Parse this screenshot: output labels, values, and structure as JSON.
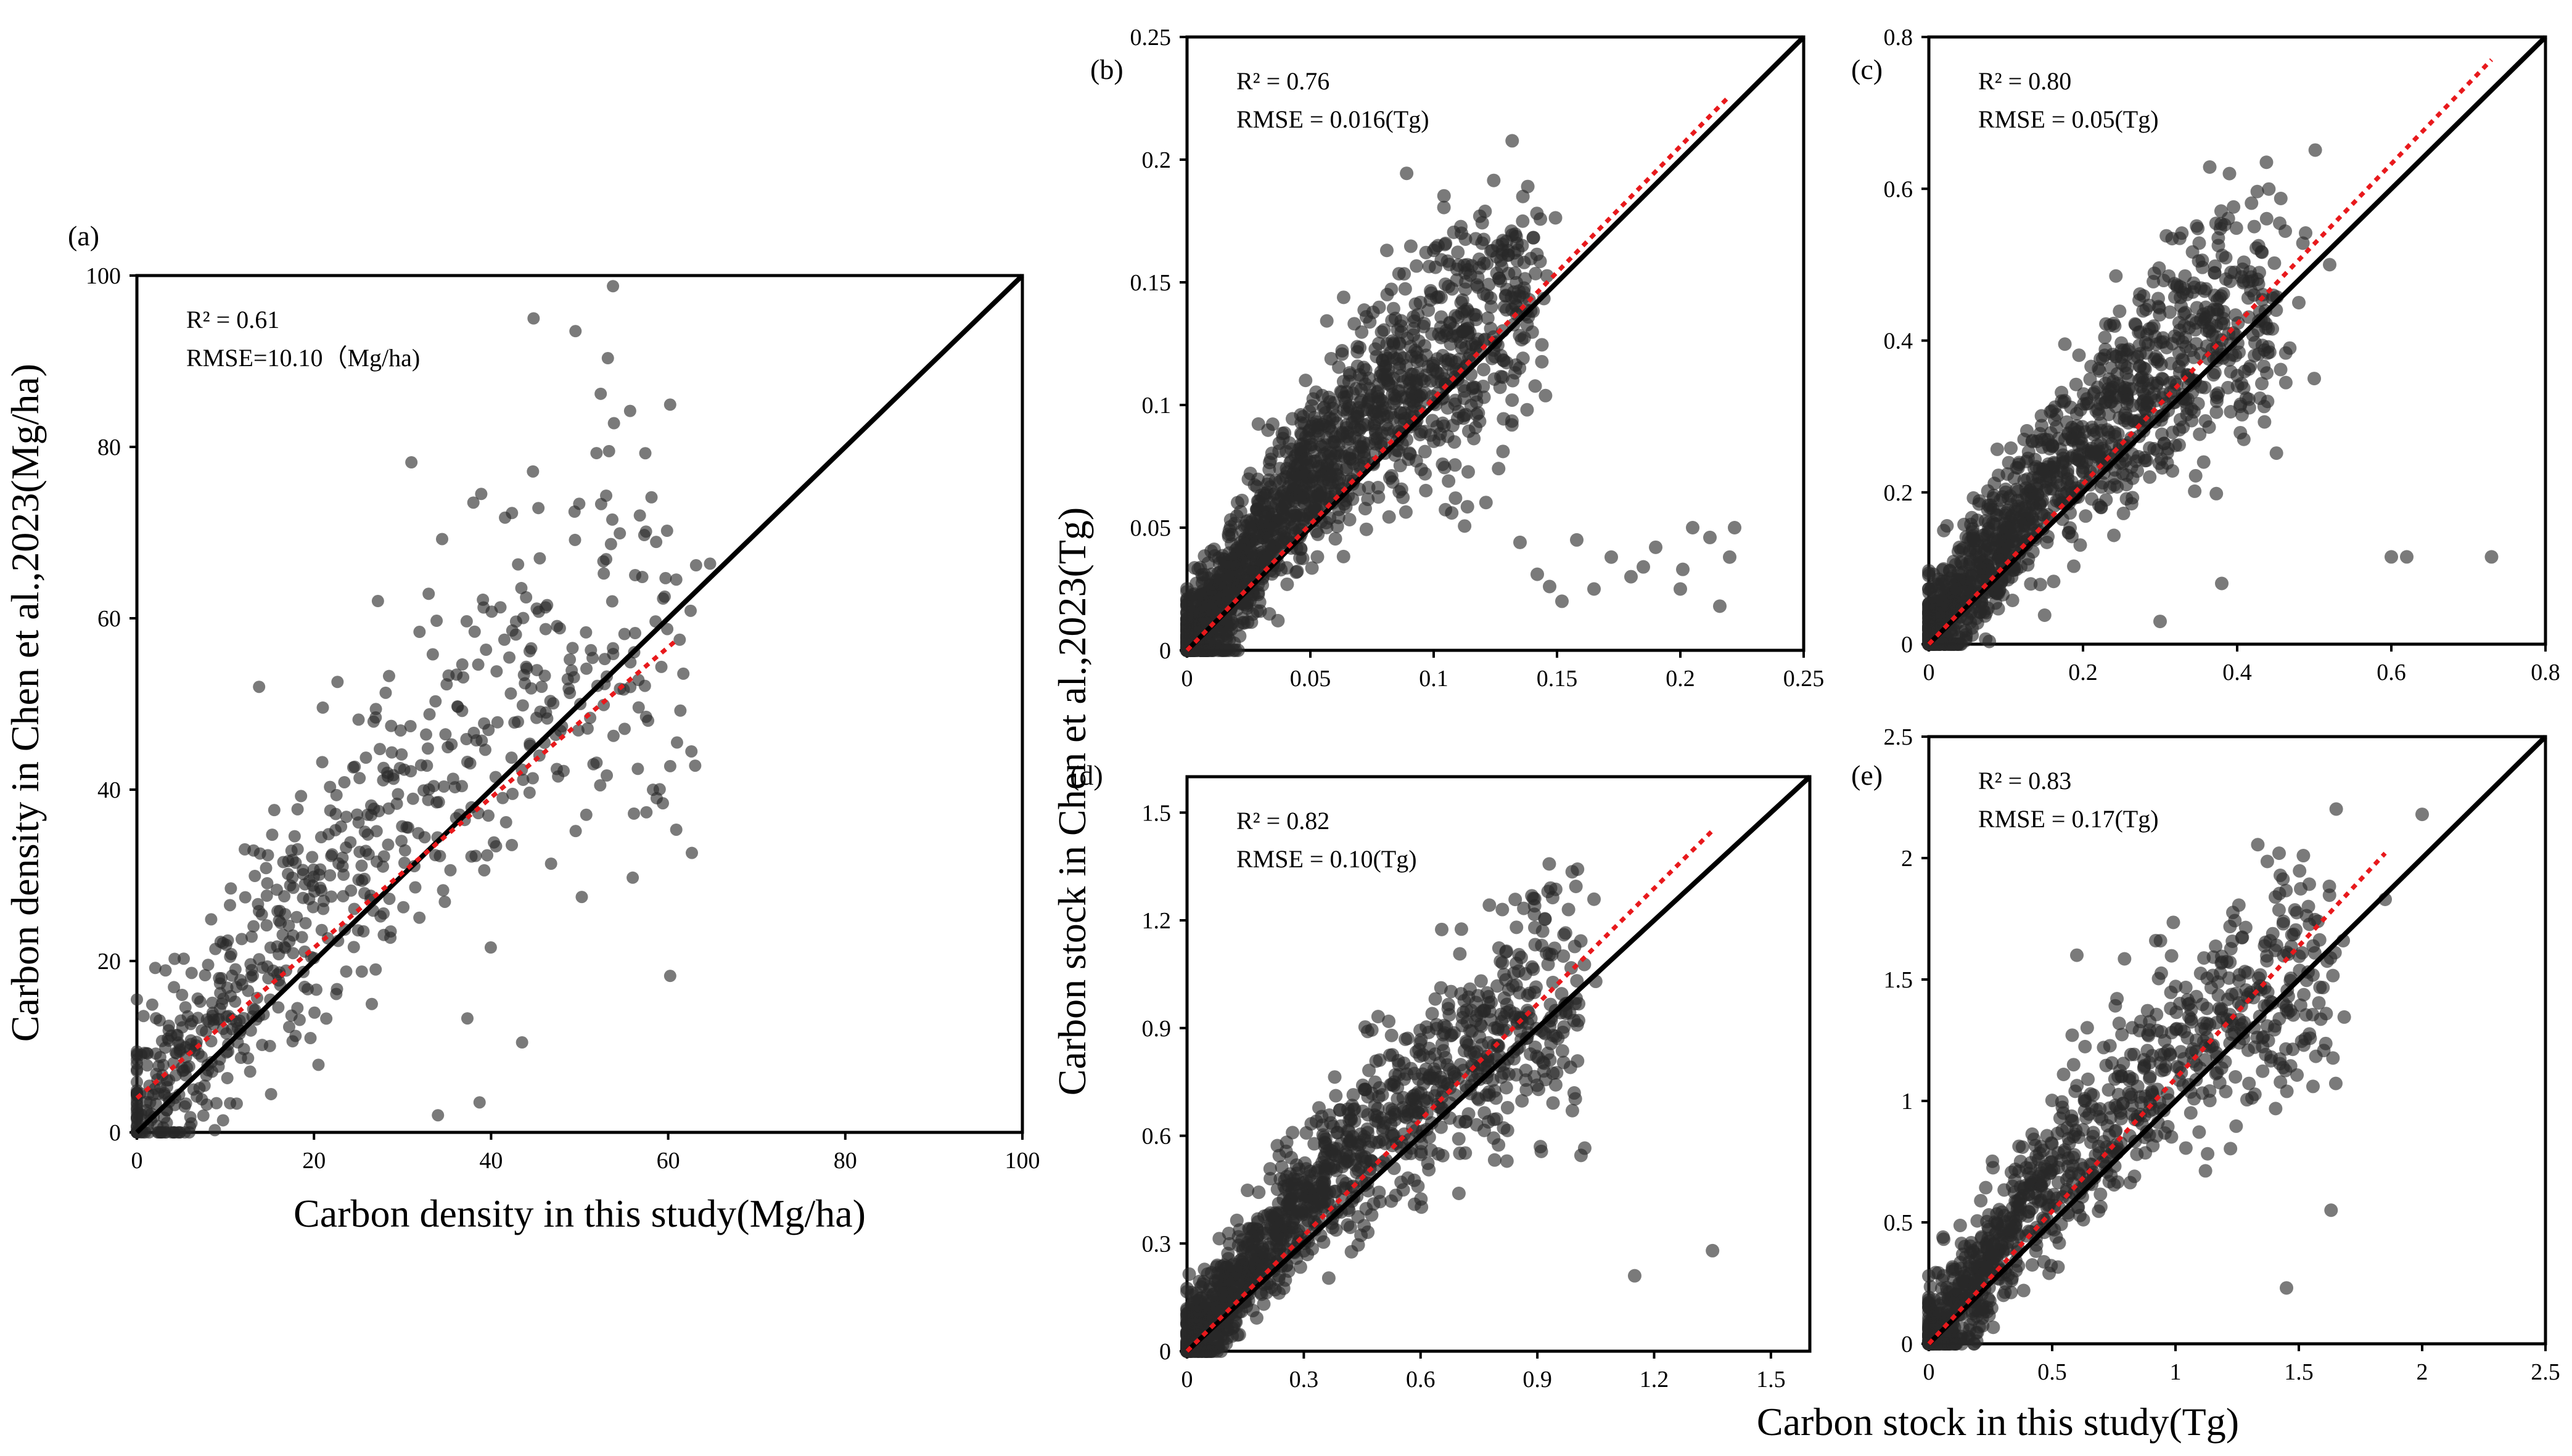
{
  "chart_data": [
    {
      "id": "a",
      "type": "scatter",
      "label": "(a)",
      "stats": [
        "R² = 0.61",
        "RMSE=10.10（Mg/ha)"
      ],
      "xlabel": "Carbon density in this study(Mg/ha)",
      "ylabel": "Carbon density in Chen et al.,2023(Mg/ha)",
      "xlim": [
        0,
        100
      ],
      "ylim": [
        0,
        100
      ],
      "xticks": [
        0,
        20,
        40,
        60,
        80,
        100
      ],
      "xtick_labels": [
        "0",
        "20",
        "40",
        "60",
        "80",
        "100"
      ],
      "yticks": [
        0,
        20,
        40,
        60,
        80,
        100
      ],
      "ytick_labels": [
        "0",
        "20",
        "40",
        "60",
        "80",
        "100"
      ],
      "one_to_one": [
        0,
        100
      ],
      "fit_line": {
        "x": [
          0,
          61
        ],
        "y": [
          4,
          57.5
        ]
      },
      "cluster": {
        "n": 700,
        "max": 60,
        "spread": 11,
        "pull": 0.55,
        "seed": 11
      },
      "points": [
        [
          44.8,
          95.0
        ],
        [
          55.7,
          84.2
        ],
        [
          31.0,
          78.2
        ],
        [
          38.0,
          73.5
        ],
        [
          56.8,
          72.0
        ],
        [
          45.5,
          67.0
        ],
        [
          41.5,
          57.5
        ],
        [
          61.3,
          57.5
        ],
        [
          13.8,
          52.0
        ],
        [
          43.5,
          10.5
        ],
        [
          38.7,
          3.5
        ],
        [
          34.0,
          2.0
        ],
        [
          58.7,
          39.0
        ],
        [
          57.5,
          48.5
        ]
      ]
    },
    {
      "id": "b",
      "type": "scatter",
      "label": "(b)",
      "stats": [
        "R² = 0.76",
        "RMSE = 0.016(Tg)"
      ],
      "xlabel": "",
      "ylabel": "",
      "xlim": [
        0,
        0.25
      ],
      "ylim": [
        0,
        0.25
      ],
      "xticks": [
        0,
        0.05,
        0.1,
        0.15,
        0.2,
        0.25
      ],
      "xtick_labels": [
        "0",
        "0.05",
        "0.1",
        "0.15",
        "0.2",
        "0.25"
      ],
      "yticks": [
        0,
        0.05,
        0.1,
        0.15,
        0.2,
        0.25
      ],
      "ytick_labels": [
        "0",
        "0.05",
        "0.1",
        "0.15",
        "0.2",
        "0.25"
      ],
      "one_to_one": [
        0,
        0.25
      ],
      "fit_line": {
        "x": [
          0,
          0.22
        ],
        "y": [
          0,
          0.226
        ]
      },
      "cluster": {
        "n": 1600,
        "max": 0.14,
        "spread": 0.022,
        "pull": 0.65,
        "seed": 23
      },
      "points": [
        [
          0.135,
          0.044
        ],
        [
          0.142,
          0.031
        ],
        [
          0.147,
          0.026
        ],
        [
          0.152,
          0.02
        ],
        [
          0.158,
          0.045
        ],
        [
          0.165,
          0.025
        ],
        [
          0.172,
          0.038
        ],
        [
          0.18,
          0.03
        ],
        [
          0.185,
          0.034
        ],
        [
          0.19,
          0.042
        ],
        [
          0.2,
          0.025
        ],
        [
          0.201,
          0.033
        ],
        [
          0.205,
          0.05
        ],
        [
          0.212,
          0.046
        ],
        [
          0.216,
          0.018
        ],
        [
          0.22,
          0.038
        ],
        [
          0.222,
          0.05
        ],
        [
          0.1,
          0.163
        ],
        [
          0.081,
          0.163
        ],
        [
          0.11,
          0.157
        ]
      ]
    },
    {
      "id": "c",
      "type": "scatter",
      "label": "(c)",
      "stats": [
        "R² = 0.80",
        "RMSE = 0.05(Tg)"
      ],
      "xlabel": "",
      "ylabel": "",
      "xlim": [
        0,
        0.8
      ],
      "ylim": [
        0,
        0.8
      ],
      "xticks": [
        0,
        0.2,
        0.4,
        0.6,
        0.8
      ],
      "xtick_labels": [
        "0",
        "0.2",
        "0.4",
        "0.6",
        "0.8"
      ],
      "yticks": [
        0,
        0.2,
        0.4,
        0.6,
        0.8
      ],
      "ytick_labels": [
        "0",
        "0.2",
        "0.4",
        "0.6",
        "0.8"
      ],
      "one_to_one": [
        0,
        0.8
      ],
      "fit_line": {
        "x": [
          0,
          0.73
        ],
        "y": [
          0,
          0.77
        ]
      },
      "cluster": {
        "n": 1300,
        "max": 0.45,
        "spread": 0.07,
        "pull": 0.6,
        "seed": 37
      },
      "points": [
        [
          0.6,
          0.115
        ],
        [
          0.62,
          0.115
        ],
        [
          0.73,
          0.115
        ],
        [
          0.39,
          0.62
        ],
        [
          0.5,
          0.35
        ],
        [
          0.52,
          0.5
        ],
        [
          0.48,
          0.45
        ],
        [
          0.3,
          0.03
        ],
        [
          0.38,
          0.08
        ]
      ]
    },
    {
      "id": "d",
      "type": "scatter",
      "label": "(d)",
      "stats": [
        "R² = 0.82",
        "RMSE = 0.10(Tg)"
      ],
      "xlabel": "",
      "ylabel": "",
      "xlim": [
        0,
        1.6
      ],
      "ylim": [
        0,
        1.6
      ],
      "xticks": [
        0,
        0.3,
        0.6,
        0.9,
        1.2,
        1.5
      ],
      "xtick_labels": [
        "0",
        "0.3",
        "0.6",
        "0.9",
        "1.2",
        "1.5"
      ],
      "yticks": [
        0,
        0.3,
        0.6,
        0.9,
        1.2,
        1.5
      ],
      "ytick_labels": [
        "0",
        "0.3",
        "0.6",
        "0.9",
        "1.2",
        "1.5"
      ],
      "one_to_one": [
        0,
        1.6
      ],
      "fit_line": {
        "x": [
          0,
          1.35
        ],
        "y": [
          0,
          1.45
        ]
      },
      "cluster": {
        "n": 1300,
        "max": 1.0,
        "spread": 0.13,
        "pull": 0.55,
        "seed": 53
      },
      "points": [
        [
          1.15,
          0.21
        ],
        [
          1.35,
          0.28
        ],
        [
          0.81,
          1.23
        ],
        [
          0.98,
          1.23
        ],
        [
          1.05,
          1.03
        ],
        [
          0.99,
          0.67
        ]
      ]
    },
    {
      "id": "e",
      "type": "scatter",
      "label": "(e)",
      "stats": [
        "R² = 0.83",
        "RMSE = 0.17(Tg)"
      ],
      "xlabel": "",
      "ylabel": "",
      "xlim": [
        0,
        2.5
      ],
      "ylim": [
        0,
        2.5
      ],
      "xticks": [
        0,
        0.5,
        1,
        1.5,
        2,
        2.5
      ],
      "xtick_labels": [
        "0",
        "0.5",
        "1",
        "1.5",
        "2",
        "2.5"
      ],
      "yticks": [
        0,
        0.5,
        1,
        1.5,
        2,
        2.5
      ],
      "ytick_labels": [
        "0",
        "0.5",
        "1",
        "1.5",
        "2",
        "2.5"
      ],
      "one_to_one": [
        0,
        2.5
      ],
      "fit_line": {
        "x": [
          0,
          1.85
        ],
        "y": [
          0,
          2.02
        ]
      },
      "cluster": {
        "n": 1000,
        "max": 1.6,
        "spread": 0.22,
        "pull": 0.5,
        "seed": 71
      },
      "points": [
        [
          2.0,
          2.18
        ],
        [
          1.42,
          2.02
        ],
        [
          1.45,
          0.23
        ],
        [
          1.85,
          1.83
        ],
        [
          1.68,
          1.66
        ],
        [
          0.92,
          1.66
        ],
        [
          0.6,
          1.6
        ]
      ]
    }
  ],
  "shared_labels": {
    "ylabel": "Carbon stock in Chen et al.,2023(Tg)",
    "xlabel": "Carbon stock in this study(Tg)"
  }
}
